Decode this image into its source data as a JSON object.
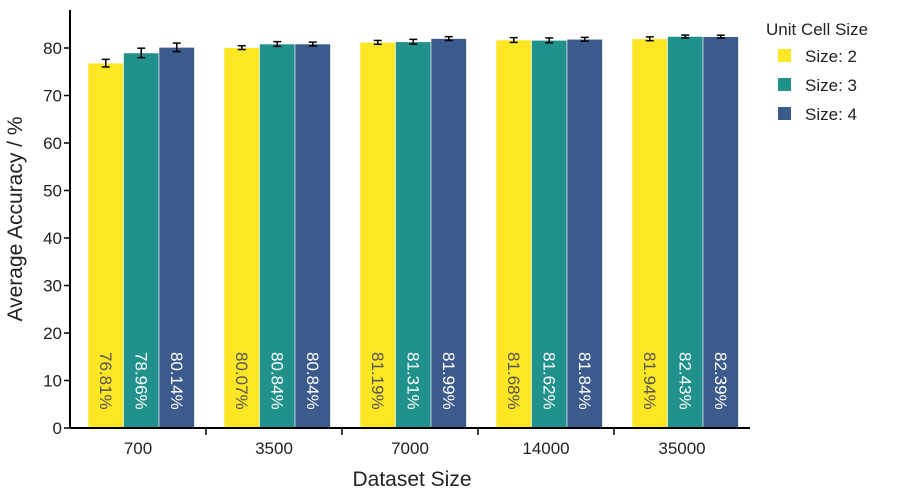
{
  "chart_data": {
    "type": "bar",
    "title": "",
    "xlabel": "Dataset Size",
    "ylabel": "Average Accuracy / %",
    "ylim": [
      0,
      88
    ],
    "yticks": [
      0,
      10,
      20,
      30,
      40,
      50,
      60,
      70,
      80
    ],
    "grid": false,
    "legend": {
      "title": "Unit Cell Size",
      "position": "right"
    },
    "categories": [
      "700",
      "3500",
      "7000",
      "14000",
      "35000"
    ],
    "series": [
      {
        "name": "Size: 2",
        "color": "#fde725",
        "values": [
          76.81,
          80.07,
          81.19,
          81.68,
          81.94
        ],
        "errors": [
          0.8,
          0.4,
          0.4,
          0.5,
          0.4
        ],
        "labels": [
          "76.81%",
          "80.07%",
          "81.19%",
          "81.68%",
          "81.94%"
        ],
        "label_color": "#555555"
      },
      {
        "name": "Size: 3",
        "color": "#21918c",
        "values": [
          78.96,
          80.84,
          81.31,
          81.62,
          82.43
        ],
        "errors": [
          1.0,
          0.5,
          0.5,
          0.5,
          0.3
        ],
        "labels": [
          "78.96%",
          "80.84%",
          "81.31%",
          "81.62%",
          "82.43%"
        ],
        "label_color": "#ffffff"
      },
      {
        "name": "Size: 4",
        "color": "#3b5b8c",
        "values": [
          80.14,
          80.84,
          81.99,
          81.84,
          82.39
        ],
        "errors": [
          0.9,
          0.4,
          0.4,
          0.4,
          0.3
        ],
        "labels": [
          "80.14%",
          "80.84%",
          "81.99%",
          "81.84%",
          "82.39%"
        ],
        "label_color": "#ffffff"
      }
    ]
  }
}
